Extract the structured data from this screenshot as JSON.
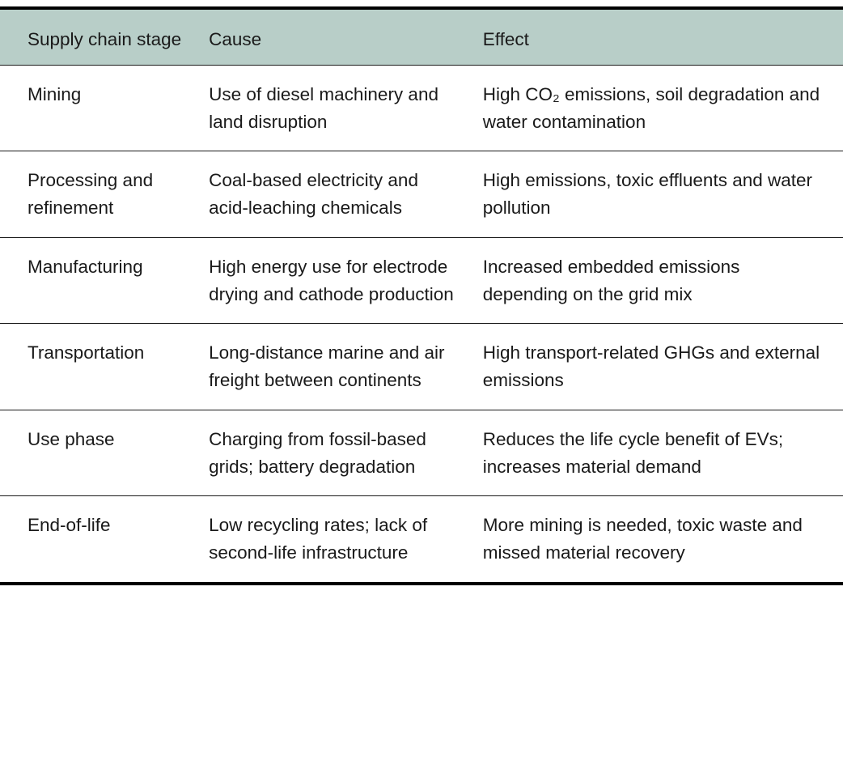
{
  "colors": {
    "header_bg": "#b8cec8",
    "border": "#000000",
    "text": "#1a1a1a"
  },
  "table": {
    "columns": [
      {
        "label": "Supply chain stage"
      },
      {
        "label": "Cause"
      },
      {
        "label": "Effect"
      }
    ],
    "rows": [
      {
        "stage": "Mining",
        "cause": "Use of diesel machinery and land disruption",
        "effect": "High CO₂ emissions, soil degradation and water contamination"
      },
      {
        "stage": "Processing and refinement",
        "cause": "Coal-based electricity and acid-leaching chemicals",
        "effect": "High emissions, toxic effluents and water pollution"
      },
      {
        "stage": "Manufacturing",
        "cause": "High energy use for electrode drying and cathode production",
        "effect": "Increased embedded emissions depending on the grid mix"
      },
      {
        "stage": "Transportation",
        "cause": "Long-distance marine and air freight between continents",
        "effect": "High transport-related GHGs and external emissions"
      },
      {
        "stage": "Use phase",
        "cause": "Charging from fossil-based grids; battery degradation",
        "effect": "Reduces the life cycle benefit of EVs; increases material demand"
      },
      {
        "stage": "End-of-life",
        "cause": "Low recycling rates; lack of second-life infrastructure",
        "effect": "More mining is needed, toxic waste and missed material recovery"
      }
    ]
  }
}
